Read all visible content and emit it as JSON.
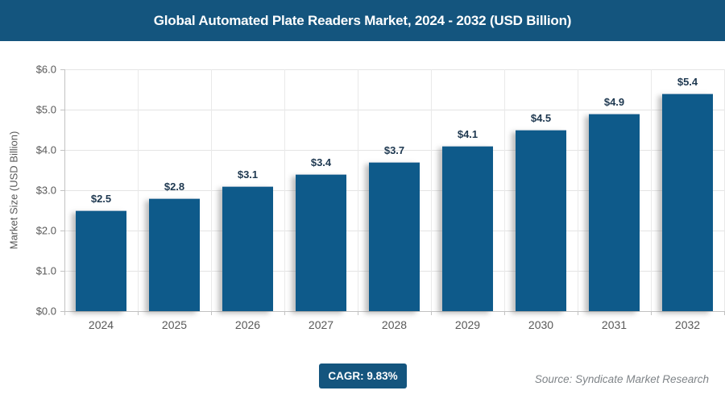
{
  "header": {
    "title": "Global Automated Plate Readers Market, 2024 - 2032 (USD Billion)"
  },
  "chart_data": {
    "type": "bar",
    "title": "Global Automated Plate Readers Market, 2024 - 2032 (USD Billion)",
    "categories": [
      "2024",
      "2025",
      "2026",
      "2027",
      "2028",
      "2029",
      "2030",
      "2031",
      "2032"
    ],
    "values": [
      2.5,
      2.8,
      3.1,
      3.4,
      3.7,
      4.1,
      4.5,
      4.9,
      5.4
    ],
    "value_labels": [
      "$2.5",
      "$2.8",
      "$3.1",
      "$3.4",
      "$3.7",
      "$4.1",
      "$4.5",
      "$4.9",
      "$5.4"
    ],
    "xlabel": "",
    "ylabel": "Market Size (USD Billion)",
    "ylim": [
      0,
      6
    ],
    "y_ticks": [
      "$0.0",
      "$1.0",
      "$2.0",
      "$3.0",
      "$4.0",
      "$5.0",
      "$6.0"
    ],
    "grid": "both",
    "legend": "none"
  },
  "footer": {
    "cagr_label": "CAGR: 9.83%",
    "source": "Source: Syndicate Market Research"
  },
  "colors": {
    "accent": "#14557e",
    "bar": "#0e5a8a",
    "value_label": "#1e3850",
    "grid": "#e4e4e4",
    "grid_v": "#e9e9e9",
    "axis": "#c2c2c2",
    "tick_text": "#595959",
    "source_text": "#7f8488"
  }
}
